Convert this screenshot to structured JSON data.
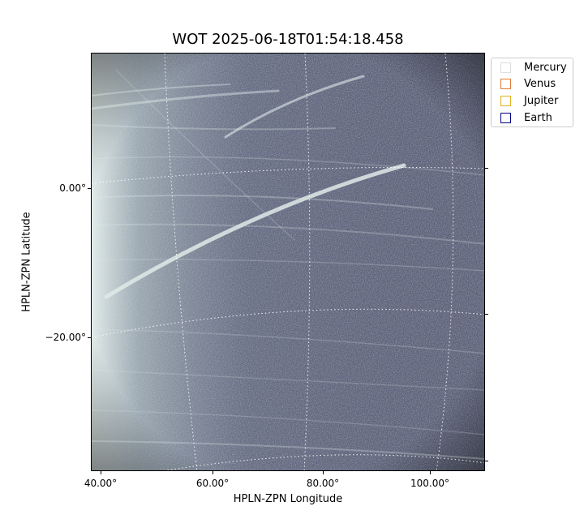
{
  "figure": {
    "title": "WOT 2025-06-18T01:54:18.458",
    "xlabel": "HPLN-ZPN Longitude",
    "ylabel": "HPLN-ZPN Latitude",
    "x_ticks": [
      {
        "label": "40.00°",
        "value": 40
      },
      {
        "label": "60.00°",
        "value": 60
      },
      {
        "label": "80.00°",
        "value": 80
      },
      {
        "label": "100.00°",
        "value": 100
      }
    ],
    "y_ticks": [
      {
        "label": "0.00°",
        "value": 0
      },
      {
        "label": "−20.00°",
        "value": -20
      }
    ],
    "legend": {
      "placement": "outside-top-right",
      "items": [
        {
          "label": "Mercury",
          "color": "#dddddd"
        },
        {
          "label": "Venus",
          "color": "#e07b39"
        },
        {
          "label": "Jupiter",
          "color": "#e0b020"
        },
        {
          "label": "Earth",
          "color": "#000080"
        }
      ]
    },
    "image_colormap": "bone"
  }
}
